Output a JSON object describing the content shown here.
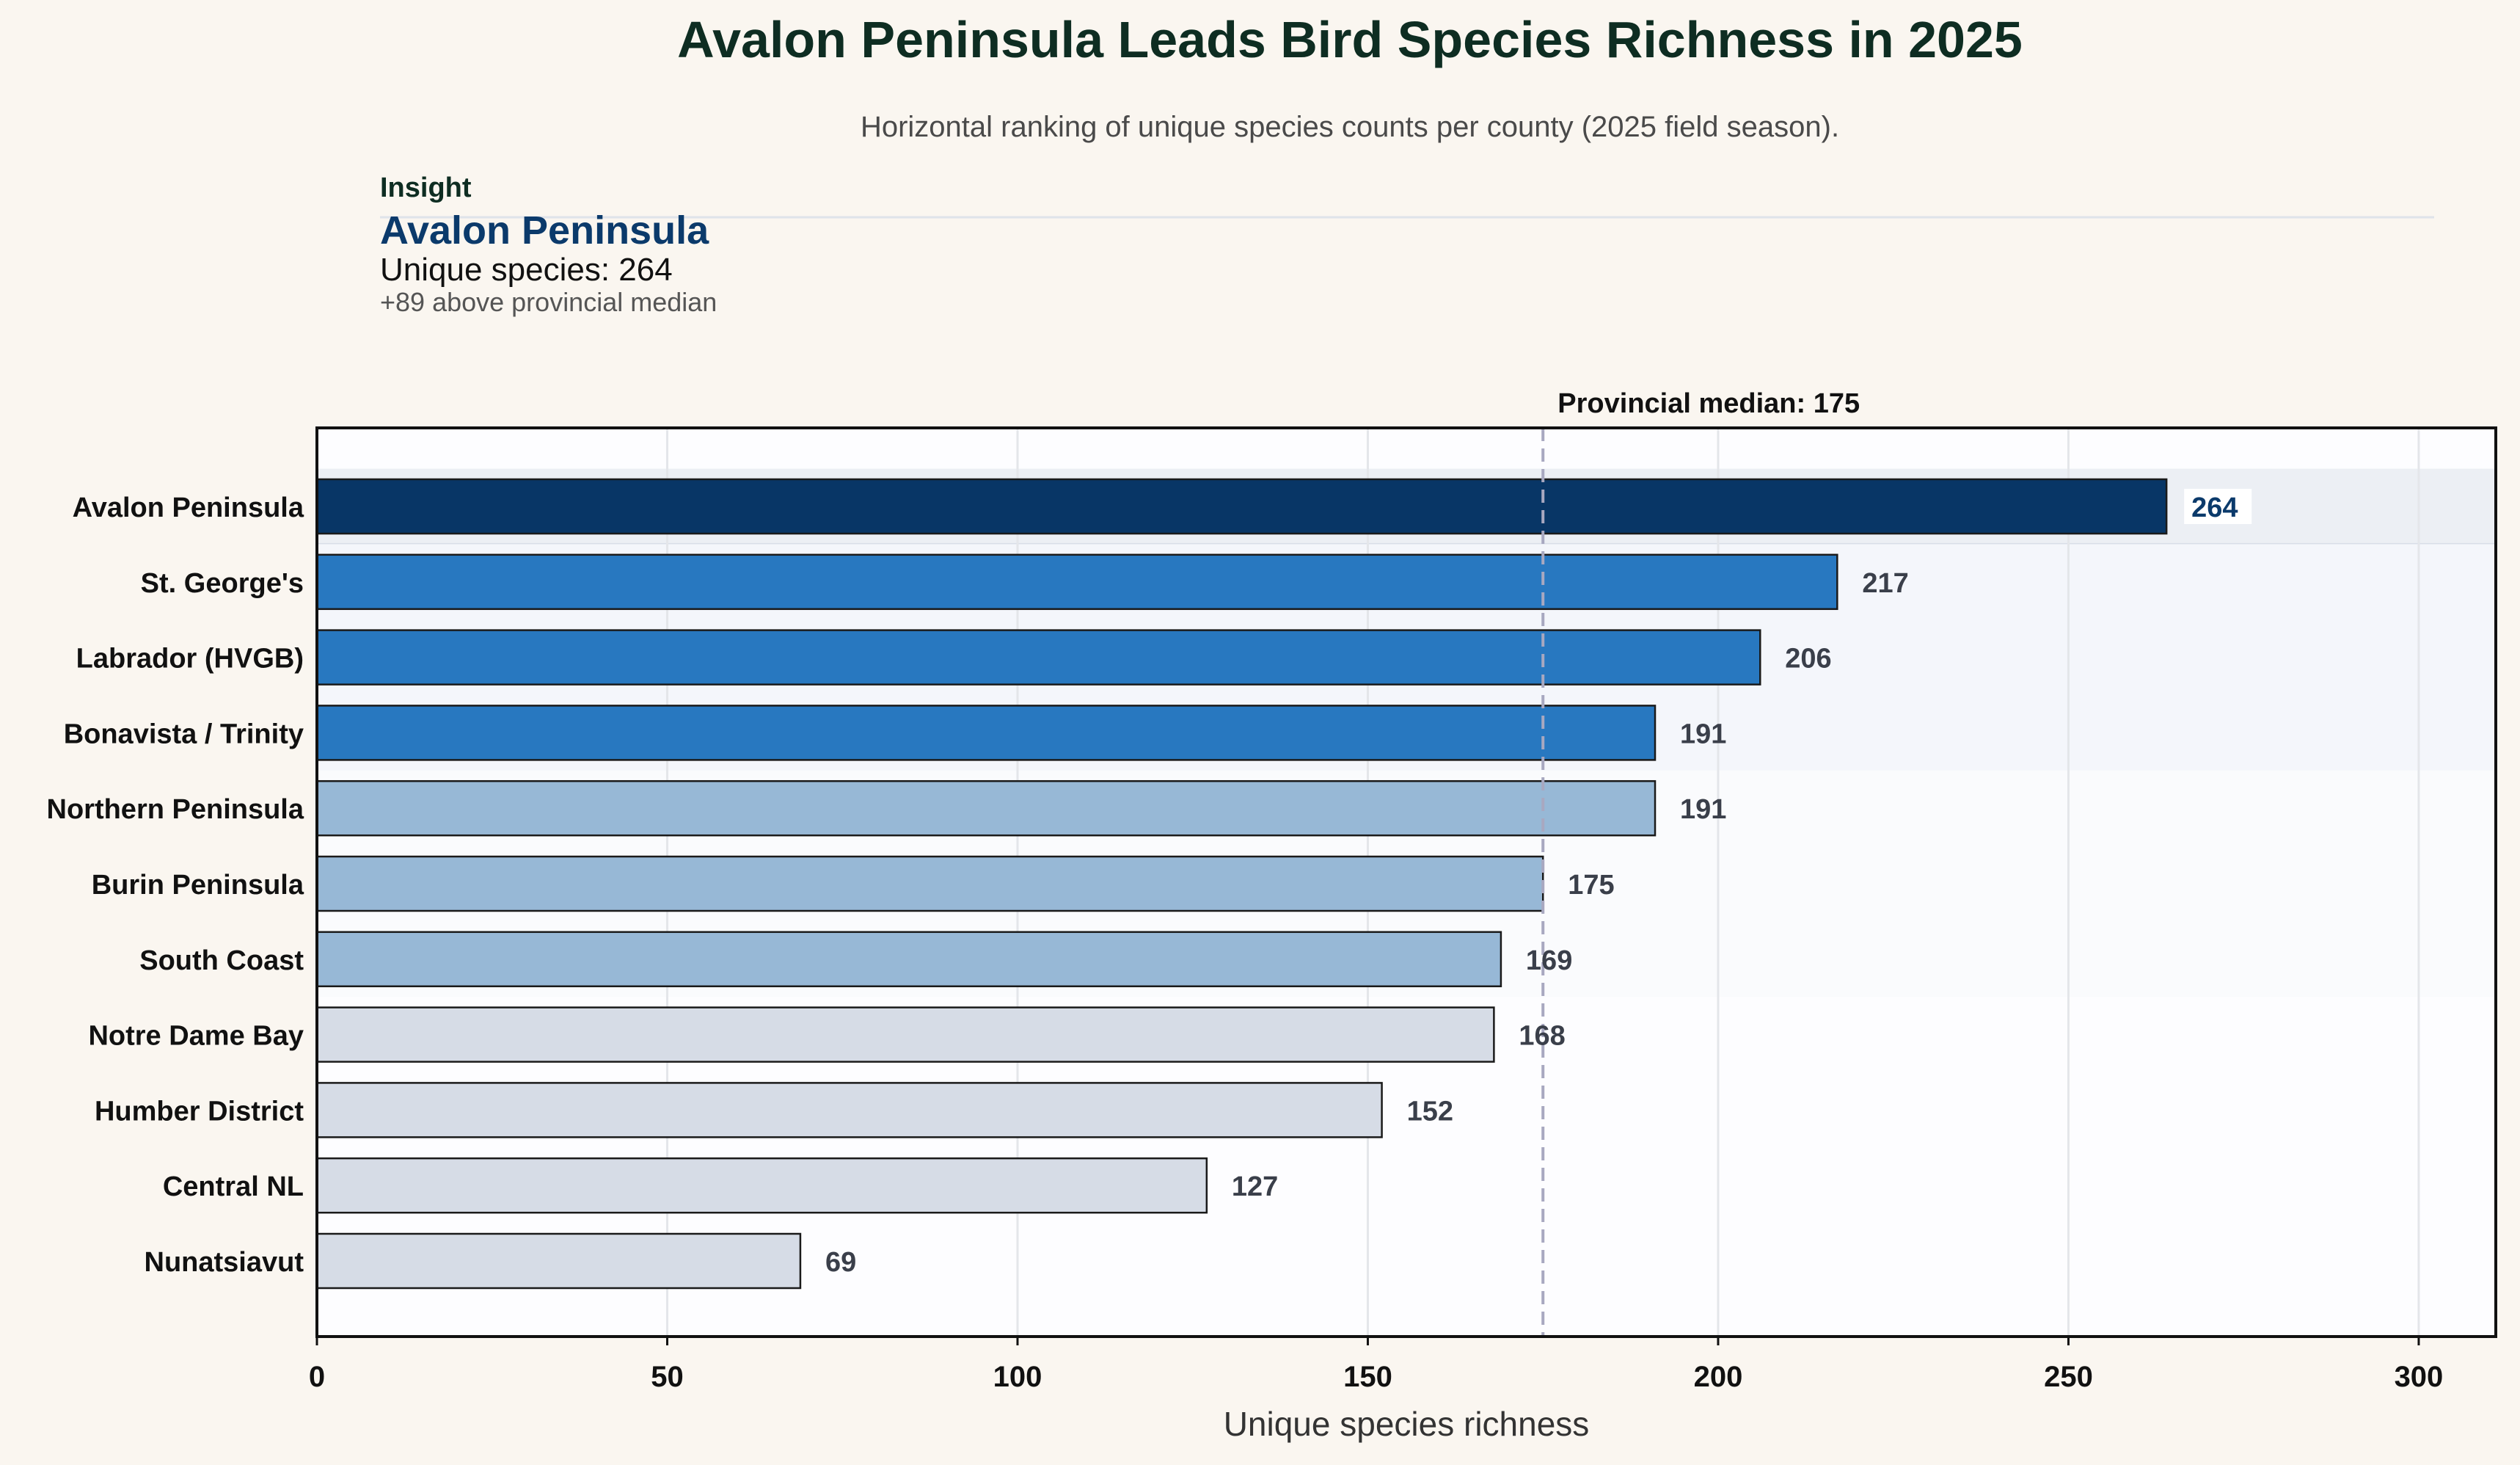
{
  "chart_data": {
    "type": "bar",
    "orientation": "horizontal",
    "title": "Avalon Peninsula Leads Bird Species Richness in 2025",
    "subtitle": "Horizontal ranking of unique species counts per county (2025 field season).",
    "xlabel": "Unique species richness",
    "ylabel": "",
    "xlim": [
      0,
      311
    ],
    "xticks": [
      0,
      50,
      100,
      150,
      200,
      250,
      300
    ],
    "grid": true,
    "categories": [
      "Avalon Peninsula",
      "St. George's",
      "Labrador (HVGB)",
      "Bonavista / Trinity",
      "Northern Peninsula",
      "Burin Peninsula",
      "South Coast",
      "Notre Dame Bay",
      "Humber District",
      "Central NL",
      "Nunatsiavut"
    ],
    "values": [
      264,
      217,
      206,
      191,
      191,
      175,
      169,
      168,
      152,
      127,
      69
    ],
    "tiers": [
      "top",
      "high",
      "high",
      "high",
      "mid",
      "mid",
      "mid",
      "low",
      "low",
      "low",
      "low"
    ],
    "median": {
      "value": 175,
      "label": "Provincial median: 175"
    },
    "insight": {
      "heading": "Insight",
      "name": "Avalon Peninsula",
      "value_text": "Unique species: 264",
      "delta_text": "+89 above provincial median"
    }
  },
  "colors": {
    "background": "#faf6f0",
    "plot_background": "#fdfdff",
    "top": "#083666",
    "high": "#2878c0",
    "mid": "#97b8d6",
    "low": "#d6dce6",
    "median_line": "#a8a8c0",
    "band_top": "#eceff4",
    "band_high": "#f4f6fb",
    "band_mid": "#fafbfd",
    "grid": "#e4e6ea"
  }
}
